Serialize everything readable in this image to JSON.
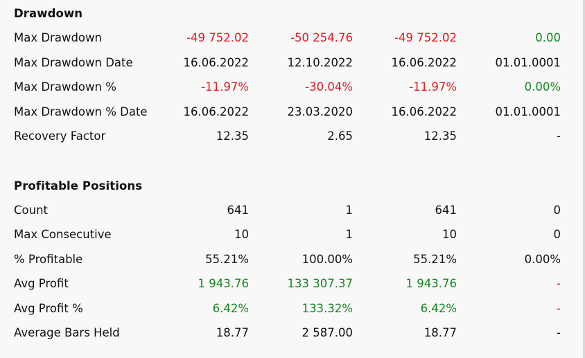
{
  "colors": {
    "negative": "#e0191f",
    "positive": "#15861f",
    "text": "#111111",
    "background": "#f8f8f8"
  },
  "sections": {
    "drawdown": {
      "title": "Drawdown",
      "rows": [
        {
          "label": "Max Drawdown",
          "values": [
            "-49 752.02",
            "-50 254.76",
            "-49 752.02",
            "0.00"
          ]
        },
        {
          "label": "Max Drawdown Date",
          "values": [
            "16.06.2022",
            "12.10.2022",
            "16.06.2022",
            "01.01.0001"
          ]
        },
        {
          "label": "Max Drawdown %",
          "values": [
            "-11.97%",
            "-30.04%",
            "-11.97%",
            "0.00%"
          ]
        },
        {
          "label": "Max Drawdown % Date",
          "values": [
            "16.06.2022",
            "23.03.2020",
            "16.06.2022",
            "01.01.0001"
          ]
        },
        {
          "label": "Recovery Factor",
          "values": [
            "12.35",
            "2.65",
            "12.35",
            "-"
          ]
        }
      ]
    },
    "profitable": {
      "title": "Profitable Positions",
      "rows": [
        {
          "label": "Count",
          "values": [
            "641",
            "1",
            "641",
            "0"
          ]
        },
        {
          "label": "Max Consecutive",
          "values": [
            "10",
            "1",
            "10",
            "0"
          ]
        },
        {
          "label": "% Profitable",
          "values": [
            "55.21%",
            "100.00%",
            "55.21%",
            "0.00%"
          ]
        },
        {
          "label": "Avg Profit",
          "values": [
            "1 943.76",
            "133 307.37",
            "1 943.76",
            "-"
          ]
        },
        {
          "label": "Avg Profit %",
          "values": [
            "6.42%",
            "133.32%",
            "6.42%",
            "-"
          ]
        },
        {
          "label": "Average Bars Held",
          "values": [
            "18.77",
            "2 587.00",
            "18.77",
            "-"
          ]
        }
      ]
    }
  }
}
